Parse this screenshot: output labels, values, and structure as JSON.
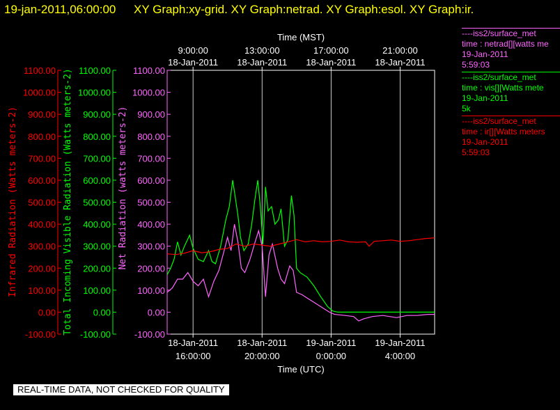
{
  "header": {
    "timestamp": "19-jan-2011,06:00:00",
    "graphs": "XY Graph:xy-grid.  XY Graph:netrad.  XY Graph:esol.  XY Graph:ir."
  },
  "colors": {
    "background": "#000000",
    "netrad": "#ff66ff",
    "vis": "#00ff00",
    "ir": "#ff0000",
    "axis": "#ffffff",
    "timestamp": "#ffff00"
  },
  "legend": [
    {
      "lines": [
        "----iss2/surface_met",
        "time : netrad[][watts me",
        "19-Jan-2011",
        "5:59:03"
      ],
      "color": "#ff66ff"
    },
    {
      "lines": [
        "----iss2/surface_met",
        "time : vis[][Watts mete",
        "19-Jan-2011",
        "5k"
      ],
      "color": "#00ff00"
    },
    {
      "lines": [
        "----iss2/surface_met",
        "time : ir[][Watts meters",
        "19-Jan-2011",
        "5:59:03"
      ],
      "color": "#ff0000"
    }
  ],
  "footer": "REAL-TIME DATA, NOT CHECKED FOR QUALITY",
  "chart_data": {
    "type": "line",
    "top_axis": {
      "label": "Time (MST)",
      "ticks": [
        {
          "hour": 16,
          "time": "9:00:00",
          "date": "18-Jan-2011"
        },
        {
          "hour": 20,
          "time": "13:00:00",
          "date": "18-Jan-2011"
        },
        {
          "hour": 24,
          "time": "17:00:00",
          "date": "18-Jan-2011"
        },
        {
          "hour": 28,
          "time": "21:00:00",
          "date": "18-Jan-2011"
        }
      ]
    },
    "bottom_axis": {
      "label": "Time (UTC)",
      "ticks": [
        {
          "hour": 16,
          "date": "18-Jan-2011",
          "time": "16:00:00"
        },
        {
          "hour": 20,
          "date": "18-Jan-2011",
          "time": "20:00:00"
        },
        {
          "hour": 24,
          "date": "19-Jan-2011",
          "time": "0:00:00"
        },
        {
          "hour": 28,
          "date": "19-Jan-2011",
          "time": "4:00:00"
        }
      ]
    },
    "xlim_hours_utc": [
      14.5,
      30.0
    ],
    "ylim": [
      -100,
      1100
    ],
    "y_ticks": [
      "-100.00",
      "0.00",
      "100.00",
      "200.00",
      "300.00",
      "400.00",
      "500.00",
      "600.00",
      "700.00",
      "800.00",
      "900.00",
      "1000.00",
      "1100.00"
    ],
    "y_axes": [
      {
        "label": "Infrared Radiation (Watts meters-2)",
        "color": "#ff0000"
      },
      {
        "label": "Total Incoming Visible Radiation (Watts meters-2)",
        "color": "#00ff00"
      },
      {
        "label": "Net Radiation (watts meters-2)",
        "color": "#ff66ff"
      }
    ],
    "grid": "vertical lines at major time ticks",
    "series": [
      {
        "name": "vis",
        "color": "#00ff00",
        "points": [
          [
            14.5,
            170
          ],
          [
            14.7,
            200
          ],
          [
            14.9,
            240
          ],
          [
            15.1,
            320
          ],
          [
            15.3,
            260
          ],
          [
            15.5,
            300
          ],
          [
            15.8,
            350
          ],
          [
            16.0,
            290
          ],
          [
            16.3,
            240
          ],
          [
            16.6,
            230
          ],
          [
            16.9,
            280
          ],
          [
            17.1,
            230
          ],
          [
            17.3,
            220
          ],
          [
            17.6,
            300
          ],
          [
            17.9,
            420
          ],
          [
            18.1,
            480
          ],
          [
            18.3,
            600
          ],
          [
            18.45,
            520
          ],
          [
            18.6,
            440
          ],
          [
            18.75,
            340
          ],
          [
            18.95,
            280
          ],
          [
            19.2,
            310
          ],
          [
            19.4,
            400
          ],
          [
            19.6,
            520
          ],
          [
            19.75,
            600
          ],
          [
            19.9,
            480
          ],
          [
            20.05,
            310
          ],
          [
            20.2,
            570
          ],
          [
            20.35,
            460
          ],
          [
            20.55,
            480
          ],
          [
            20.75,
            400
          ],
          [
            20.95,
            420
          ],
          [
            21.1,
            470
          ],
          [
            21.3,
            300
          ],
          [
            21.5,
            330
          ],
          [
            21.7,
            530
          ],
          [
            21.85,
            440
          ],
          [
            22.0,
            200
          ],
          [
            22.2,
            180
          ],
          [
            22.6,
            160
          ],
          [
            23.0,
            120
          ],
          [
            23.4,
            70
          ],
          [
            23.8,
            25
          ],
          [
            24.1,
            5
          ],
          [
            24.4,
            0
          ],
          [
            26,
            0
          ],
          [
            30,
            0
          ]
        ]
      },
      {
        "name": "netrad",
        "color": "#ff66ff",
        "points": [
          [
            14.5,
            90
          ],
          [
            14.8,
            110
          ],
          [
            15.1,
            150
          ],
          [
            15.4,
            150
          ],
          [
            15.7,
            180
          ],
          [
            16.0,
            140
          ],
          [
            16.3,
            120
          ],
          [
            16.6,
            150
          ],
          [
            16.9,
            70
          ],
          [
            17.2,
            140
          ],
          [
            17.5,
            190
          ],
          [
            17.8,
            280
          ],
          [
            18.0,
            340
          ],
          [
            18.2,
            280
          ],
          [
            18.4,
            400
          ],
          [
            18.6,
            320
          ],
          [
            18.8,
            200
          ],
          [
            19.0,
            180
          ],
          [
            19.3,
            240
          ],
          [
            19.6,
            320
          ],
          [
            19.8,
            370
          ],
          [
            20.0,
            300
          ],
          [
            20.2,
            70
          ],
          [
            20.4,
            260
          ],
          [
            20.6,
            310
          ],
          [
            20.9,
            200
          ],
          [
            21.1,
            150
          ],
          [
            21.3,
            130
          ],
          [
            21.6,
            210
          ],
          [
            21.8,
            190
          ],
          [
            22.0,
            90
          ],
          [
            22.3,
            80
          ],
          [
            22.7,
            60
          ],
          [
            23.1,
            40
          ],
          [
            23.5,
            20
          ],
          [
            23.9,
            0
          ],
          [
            24.2,
            -10
          ],
          [
            24.8,
            -15
          ],
          [
            25.3,
            -20
          ],
          [
            25.6,
            -40
          ],
          [
            25.9,
            -30
          ],
          [
            26.4,
            -20
          ],
          [
            27.0,
            -15
          ],
          [
            27.8,
            -25
          ],
          [
            28.4,
            -15
          ],
          [
            29.0,
            -15
          ],
          [
            29.6,
            -10
          ],
          [
            30.0,
            -10
          ]
        ]
      },
      {
        "name": "ir",
        "color": "#ff0000",
        "points": [
          [
            14.5,
            265
          ],
          [
            15.0,
            262
          ],
          [
            15.5,
            268
          ],
          [
            16.0,
            280
          ],
          [
            16.5,
            270
          ],
          [
            17.0,
            275
          ],
          [
            17.5,
            285
          ],
          [
            18.0,
            290
          ],
          [
            18.5,
            310
          ],
          [
            19.0,
            300
          ],
          [
            19.5,
            310
          ],
          [
            20.0,
            305
          ],
          [
            20.5,
            300
          ],
          [
            21.0,
            310
          ],
          [
            21.5,
            320
          ],
          [
            22.0,
            330
          ],
          [
            22.5,
            320
          ],
          [
            23.0,
            325
          ],
          [
            23.5,
            320
          ],
          [
            24.0,
            322
          ],
          [
            24.5,
            328
          ],
          [
            25.0,
            320
          ],
          [
            25.5,
            318
          ],
          [
            26.0,
            320
          ],
          [
            26.2,
            300
          ],
          [
            26.5,
            322
          ],
          [
            27.0,
            325
          ],
          [
            27.5,
            328
          ],
          [
            28.0,
            322
          ],
          [
            28.5,
            325
          ],
          [
            29.0,
            330
          ],
          [
            29.5,
            335
          ],
          [
            30.0,
            338
          ]
        ]
      }
    ]
  }
}
